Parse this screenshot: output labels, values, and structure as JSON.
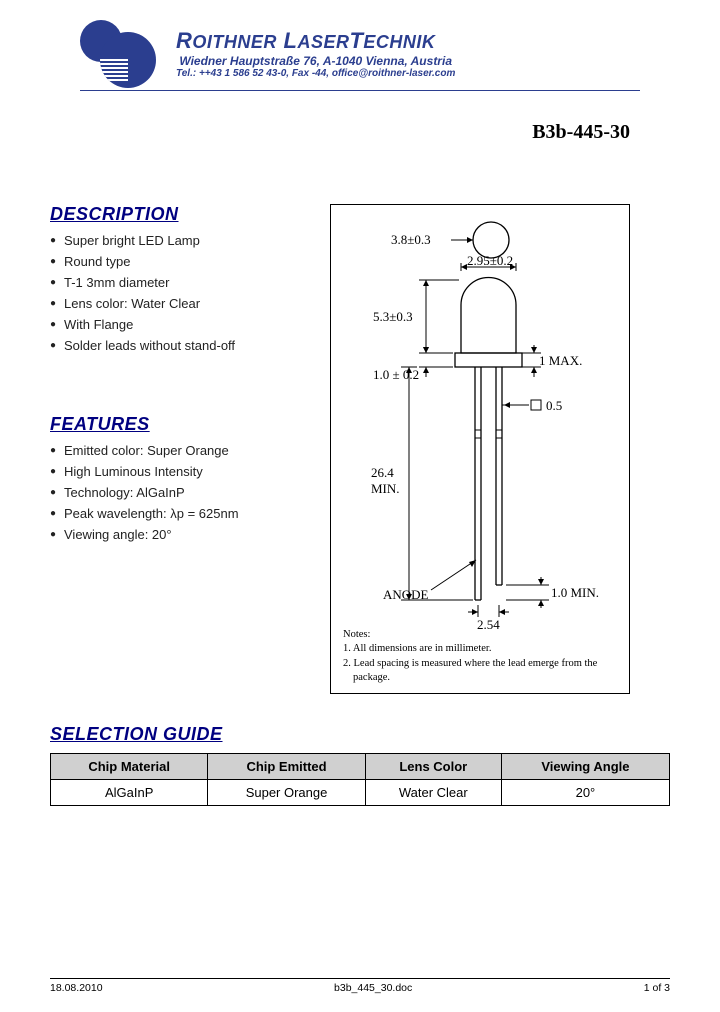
{
  "header": {
    "company_name_html": "ROITHNER LASERTECHNIK",
    "address": "Wiedner Hauptstraße 76, A-1040 Vienna, Austria",
    "contact": "Tel.: ++43 1 586 52  43-0, Fax -44, office@roithner-laser.com"
  },
  "part_number": "B3b-445-30",
  "description": {
    "heading": "DESCRIPTION",
    "items": [
      "Super bright LED Lamp",
      "Round type",
      "T-1 3mm diameter",
      "Lens color: Water Clear",
      "With Flange",
      "Solder leads without stand-off"
    ]
  },
  "features": {
    "heading": "FEATURES",
    "items": [
      "Emitted color: Super Orange",
      "High Luminous Intensity",
      "Technology: AlGaInP",
      "Peak wavelength: λp = 625nm",
      "Viewing angle: 20°"
    ]
  },
  "diagram": {
    "dims": {
      "top_circle": "3.8±0.3",
      "body_width": "2.95±0.2",
      "dome_h": "5.3±0.3",
      "flange_h": "1.0 ± 0.2",
      "flange_w": "1 MAX.",
      "lead_sq": "0.5",
      "lead_len": "26.4 MIN.",
      "anode_lbl": "ANODE",
      "spacing": "2.54",
      "cathode_notch": "1.0 MIN."
    },
    "notes_heading": "Notes:",
    "note1": "1. All dimensions are in millimeter.",
    "note2": "2. Lead spacing is measured where the lead emerge from the package."
  },
  "selection": {
    "heading": "SELECTION GUIDE",
    "columns": [
      "Chip Material",
      "Chip Emitted",
      "Lens Color",
      "Viewing Angle"
    ],
    "rows": [
      [
        "AlGaInP",
        "Super Orange",
        "Water Clear",
        "20°"
      ]
    ]
  },
  "footer": {
    "date": "18.08.2010",
    "file": "b3b_445_30.doc",
    "page": "1 of 3"
  },
  "colors": {
    "brand_blue": "#2b3e8f",
    "heading_blue": "#000080"
  }
}
